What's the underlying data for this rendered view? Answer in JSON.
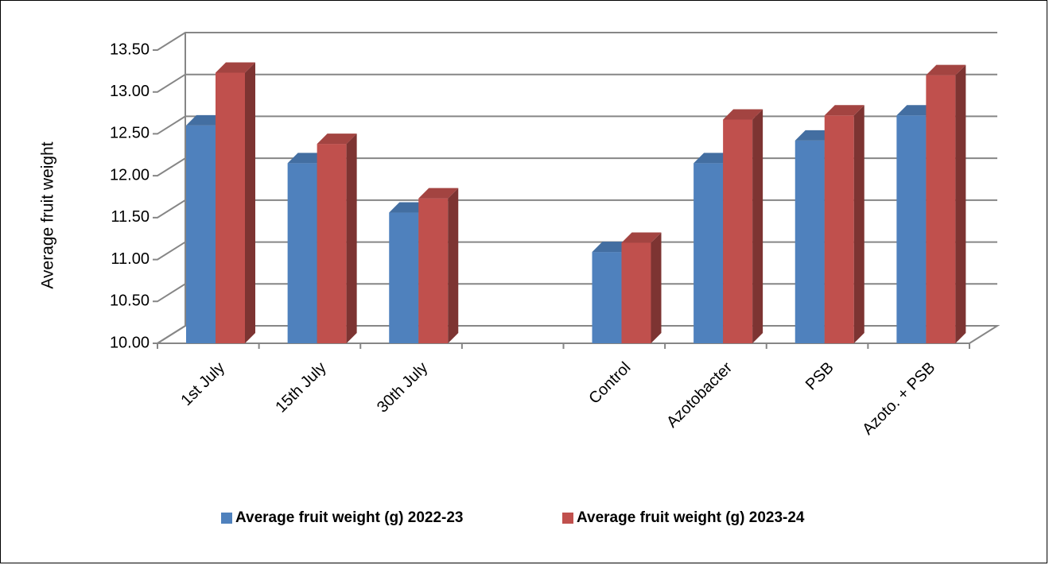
{
  "chart_data": {
    "type": "bar",
    "categories": [
      "1st July",
      "15th July",
      "30th July",
      "",
      "Control",
      "Azotobacter",
      "PSB",
      "Azoto. + PSB"
    ],
    "series": [
      {
        "name": "Average fruit weight (g) 2022-23",
        "values": [
          12.6,
          12.15,
          11.56,
          null,
          11.09,
          12.15,
          12.42,
          12.72
        ],
        "color": "#4f81bd"
      },
      {
        "name": "Average fruit weight (g) 2023-24",
        "values": [
          13.23,
          12.38,
          11.73,
          null,
          11.2,
          12.67,
          12.72,
          13.2
        ],
        "color": "#c0504d"
      }
    ],
    "title": "",
    "xlabel": "",
    "ylabel": "Average fruit weight",
    "ylim": [
      10.0,
      13.5
    ],
    "yticks": [
      "10.00",
      "10.50",
      "11.00",
      "11.50",
      "12.00",
      "12.50",
      "13.00",
      "13.50"
    ],
    "grid": true,
    "style": "3d-clustered-column",
    "legend_position": "bottom"
  }
}
